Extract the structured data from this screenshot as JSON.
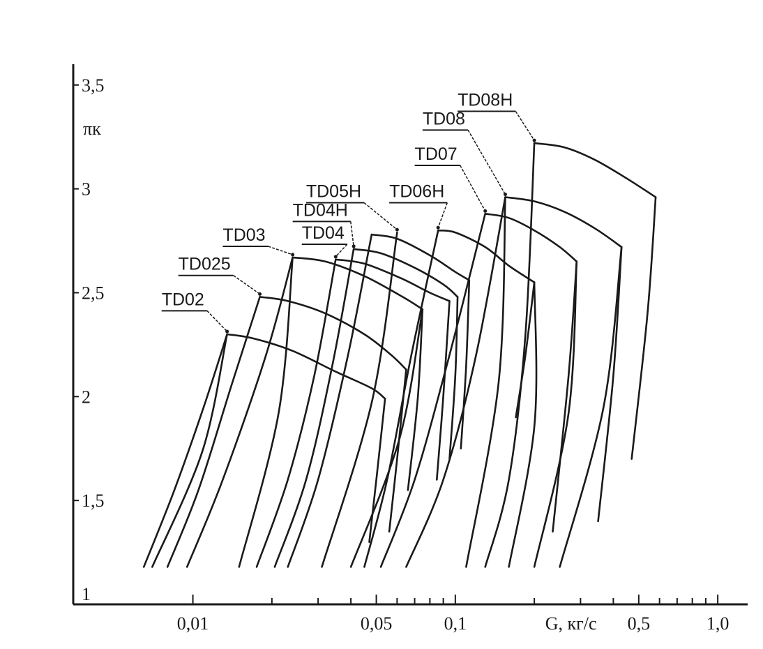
{
  "chart_data": {
    "type": "line",
    "title": "",
    "xlabel": "G, кг/с",
    "ylabel": "πк",
    "x_scale": "log",
    "xlim": [
      0.0035,
      1.3
    ],
    "ylim": [
      1,
      3.6
    ],
    "grid": false,
    "x_ticks": [
      {
        "value": 0.01,
        "label": "0,01"
      },
      {
        "value": 0.05,
        "label": "0,05"
      },
      {
        "value": 0.1,
        "label": "0,1"
      },
      {
        "value": 0.5,
        "label": "0,5"
      },
      {
        "value": 1.0,
        "label": "1,0"
      }
    ],
    "x_minor_ticks": [
      0.02,
      0.03,
      0.04,
      0.06,
      0.07,
      0.08,
      0.09,
      0.2,
      0.3,
      0.4,
      0.6,
      0.7,
      0.8,
      0.9
    ],
    "y_ticks": [
      {
        "value": 1,
        "label": "1"
      },
      {
        "value": 1.5,
        "label": "1,5"
      },
      {
        "value": 2,
        "label": "2"
      },
      {
        "value": 2.5,
        "label": "2,5"
      },
      {
        "value": 3,
        "label": "3"
      },
      {
        "value": 3.5,
        "label": "3,5"
      }
    ],
    "series": [
      {
        "name": "TD02",
        "surge": [
          [
            0.0065,
            1.18
          ],
          [
            0.0085,
            1.55
          ],
          [
            0.011,
            1.95
          ],
          [
            0.0135,
            2.3
          ]
        ],
        "top": [
          [
            0.0135,
            2.3
          ],
          [
            0.017,
            2.28
          ],
          [
            0.024,
            2.22
          ],
          [
            0.035,
            2.12
          ],
          [
            0.048,
            2.04
          ],
          [
            0.054,
            1.99
          ]
        ],
        "choke": [
          [
            0.054,
            1.99
          ],
          [
            0.05,
            1.6
          ],
          [
            0.047,
            1.3
          ]
        ],
        "label": "TD02",
        "label_pos": [
          0.0076,
          2.44
        ],
        "arrow_to": [
          0.0135,
          2.3
        ]
      },
      {
        "name": "TD025",
        "surge": [
          [
            0.008,
            1.18
          ],
          [
            0.0105,
            1.55
          ],
          [
            0.014,
            2.05
          ],
          [
            0.018,
            2.48
          ]
        ],
        "top": [
          [
            0.018,
            2.48
          ],
          [
            0.023,
            2.46
          ],
          [
            0.032,
            2.4
          ],
          [
            0.045,
            2.3
          ],
          [
            0.057,
            2.2
          ],
          [
            0.065,
            2.13
          ]
        ],
        "choke": [
          [
            0.065,
            2.13
          ],
          [
            0.06,
            1.7
          ],
          [
            0.056,
            1.35
          ]
        ],
        "label": "TD025",
        "label_pos": [
          0.0088,
          2.61
        ],
        "arrow_to": [
          0.018,
          2.48
        ]
      },
      {
        "name": "TD03",
        "surge": [
          [
            0.0095,
            1.18
          ],
          [
            0.013,
            1.6
          ],
          [
            0.019,
            2.2
          ],
          [
            0.024,
            2.67
          ]
        ],
        "top": [
          [
            0.024,
            2.67
          ],
          [
            0.032,
            2.65
          ],
          [
            0.045,
            2.58
          ],
          [
            0.063,
            2.48
          ],
          [
            0.075,
            2.42
          ]
        ],
        "choke": [
          [
            0.075,
            2.42
          ],
          [
            0.072,
            2.0
          ],
          [
            0.066,
            1.55
          ]
        ],
        "label": "TD03",
        "label_pos": [
          0.013,
          2.75
        ],
        "arrow_to": [
          0.024,
          2.67
        ]
      },
      {
        "name": "TD04",
        "surge": [
          [
            0.0175,
            1.18
          ],
          [
            0.023,
            1.6
          ],
          [
            0.029,
            2.1
          ],
          [
            0.035,
            2.66
          ]
        ],
        "top": [
          [
            0.035,
            2.66
          ],
          [
            0.045,
            2.64
          ],
          [
            0.062,
            2.57
          ],
          [
            0.08,
            2.5
          ],
          [
            0.095,
            2.46
          ]
        ],
        "choke": [
          [
            0.095,
            2.46
          ],
          [
            0.09,
            2.0
          ],
          [
            0.085,
            1.6
          ]
        ],
        "label": "TD04",
        "label_pos": [
          0.026,
          2.76
        ],
        "arrow_to": [
          0.035,
          2.66
        ]
      },
      {
        "name": "TD04H",
        "surge": [
          [
            0.0205,
            1.18
          ],
          [
            0.027,
            1.6
          ],
          [
            0.034,
            2.15
          ],
          [
            0.041,
            2.71
          ]
        ],
        "top": [
          [
            0.041,
            2.71
          ],
          [
            0.052,
            2.69
          ],
          [
            0.07,
            2.62
          ],
          [
            0.09,
            2.54
          ],
          [
            0.102,
            2.48
          ]
        ],
        "choke": [
          [
            0.102,
            2.48
          ],
          [
            0.1,
            2.1
          ],
          [
            0.095,
            1.7
          ]
        ],
        "label": "TD04H",
        "label_pos": [
          0.024,
          2.87
        ],
        "arrow_to": [
          0.041,
          2.71
        ]
      },
      {
        "name": "TD05H",
        "surge": [
          [
            0.023,
            1.18
          ],
          [
            0.03,
            1.6
          ],
          [
            0.039,
            2.2
          ],
          [
            0.048,
            2.78
          ]
        ],
        "top": [
          [
            0.048,
            2.78
          ],
          [
            0.06,
            2.76
          ],
          [
            0.08,
            2.68
          ],
          [
            0.1,
            2.6
          ],
          [
            0.113,
            2.56
          ]
        ],
        "choke": [
          [
            0.113,
            2.56
          ],
          [
            0.11,
            2.15
          ],
          [
            0.105,
            1.75
          ]
        ],
        "label": "TD05H",
        "label_pos": [
          0.027,
          2.96
        ],
        "arrow_to": [
          0.06,
          2.79
        ]
      },
      {
        "name": "TD06H",
        "surge": [
          [
            0.045,
            1.18
          ],
          [
            0.055,
            1.6
          ],
          [
            0.068,
            2.2
          ],
          [
            0.086,
            2.8
          ]
        ],
        "top": [
          [
            0.086,
            2.8
          ],
          [
            0.1,
            2.79
          ],
          [
            0.13,
            2.72
          ],
          [
            0.16,
            2.63
          ],
          [
            0.2,
            2.55
          ]
        ],
        "choke": [
          [
            0.2,
            2.55
          ],
          [
            0.185,
            2.2
          ],
          [
            0.17,
            1.9
          ]
        ],
        "label": "TD06H",
        "label_pos": [
          0.056,
          2.96
        ],
        "arrow_to": [
          0.086,
          2.8
        ]
      },
      {
        "name": "TD07",
        "surge": [
          [
            0.052,
            1.18
          ],
          [
            0.07,
            1.6
          ],
          [
            0.095,
            2.2
          ],
          [
            0.13,
            2.88
          ]
        ],
        "top": [
          [
            0.13,
            2.88
          ],
          [
            0.16,
            2.86
          ],
          [
            0.2,
            2.8
          ],
          [
            0.25,
            2.72
          ],
          [
            0.29,
            2.65
          ]
        ],
        "choke": [
          [
            0.29,
            2.65
          ],
          [
            0.27,
            2.1
          ],
          [
            0.235,
            1.35
          ]
        ],
        "label": "TD07",
        "label_pos": [
          0.07,
          3.14
        ],
        "arrow_to": [
          0.13,
          2.88
        ]
      },
      {
        "name": "TD08",
        "surge": [
          [
            0.065,
            1.18
          ],
          [
            0.09,
            1.6
          ],
          [
            0.12,
            2.2
          ],
          [
            0.155,
            2.96
          ]
        ],
        "top": [
          [
            0.155,
            2.96
          ],
          [
            0.2,
            2.94
          ],
          [
            0.26,
            2.89
          ],
          [
            0.34,
            2.81
          ],
          [
            0.43,
            2.72
          ]
        ],
        "choke": [
          [
            0.43,
            2.72
          ],
          [
            0.4,
            2.1
          ],
          [
            0.35,
            1.4
          ]
        ],
        "label": "TD08",
        "label_pos": [
          0.075,
          3.31
        ],
        "arrow_to": [
          0.155,
          2.96
        ]
      },
      {
        "name": "TD08H",
        "surge": [
          [
            0.13,
            1.18
          ],
          [
            0.16,
            1.6
          ],
          [
            0.185,
            2.3
          ],
          [
            0.2,
            3.22
          ]
        ],
        "top": [
          [
            0.2,
            3.22
          ],
          [
            0.26,
            3.2
          ],
          [
            0.34,
            3.14
          ],
          [
            0.45,
            3.05
          ],
          [
            0.58,
            2.96
          ]
        ],
        "choke": [
          [
            0.58,
            2.96
          ],
          [
            0.54,
            2.4
          ],
          [
            0.47,
            1.7
          ]
        ],
        "label": "TD08H",
        "label_pos": [
          0.102,
          3.4
        ],
        "arrow_to": [
          0.2,
          3.22
        ]
      }
    ],
    "extra_left_curves": [
      {
        "from": [
          0.007,
          1.18
        ],
        "to": [
          0.0135,
          2.3
        ]
      },
      {
        "from": [
          0.015,
          1.18
        ],
        "to": [
          0.024,
          2.67
        ]
      },
      {
        "from": [
          0.031,
          1.18
        ],
        "to": [
          0.06,
          2.79
        ]
      },
      {
        "from": [
          0.04,
          1.18
        ],
        "to": [
          0.075,
          2.42
        ]
      },
      {
        "from": [
          0.11,
          1.18
        ],
        "to": [
          0.155,
          2.96
        ]
      },
      {
        "from": [
          0.16,
          1.18
        ],
        "to": [
          0.2,
          2.55
        ]
      },
      {
        "from": [
          0.2,
          1.18
        ],
        "to": [
          0.29,
          2.65
        ]
      },
      {
        "from": [
          0.25,
          1.18
        ],
        "to": [
          0.43,
          2.72
        ]
      }
    ]
  }
}
